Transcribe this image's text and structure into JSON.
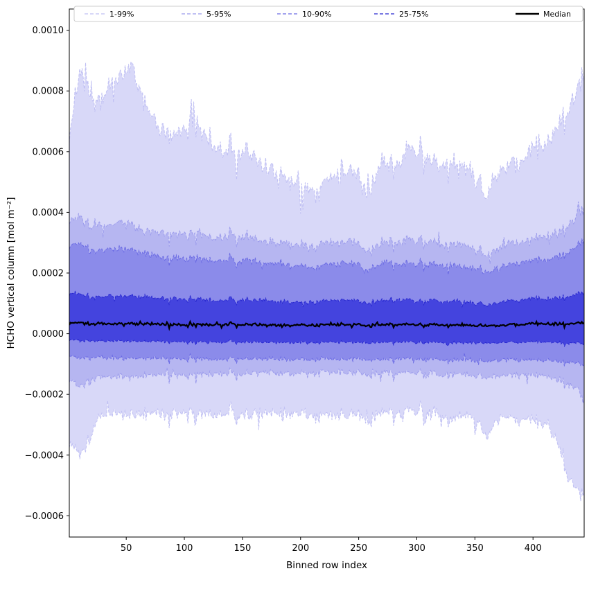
{
  "figure": {
    "background": "#ffffff"
  },
  "chart_data": {
    "type": "area",
    "title": "",
    "xlabel": "Binned row index",
    "ylabel": "HCHO vertical column [mol m⁻²]",
    "xlim": [
      1,
      444
    ],
    "ylim": [
      -0.00067,
      0.00107
    ],
    "n_bins": 444,
    "grid": false,
    "noise_seed": 1337,
    "xticks": {
      "values": [
        50,
        100,
        150,
        200,
        250,
        300,
        350,
        400
      ],
      "labels": [
        "50",
        "100",
        "150",
        "200",
        "250",
        "300",
        "350",
        "400"
      ]
    },
    "yticks": {
      "values": [
        0.001,
        0.0008,
        0.0006,
        0.0004,
        0.0002,
        0.0,
        -0.0002,
        -0.0004,
        -0.0006
      ],
      "labels": [
        "0.0010",
        "0.0008",
        "0.0006",
        "0.0004",
        "0.0002",
        "0.0000",
        "−0.0002",
        "−0.0004",
        "−0.0006"
      ]
    },
    "legend": {
      "position": "top-expand",
      "entries": [
        {
          "label": "1-99%",
          "color": "#bfbff3",
          "dash": "5 3",
          "width": 1.2
        },
        {
          "label": "5-95%",
          "color": "#9b9bec",
          "dash": "5 3",
          "width": 1.2
        },
        {
          "label": "10-90%",
          "color": "#6a6ae3",
          "dash": "5 3",
          "width": 1.2
        },
        {
          "label": "25-75%",
          "color": "#2828cf",
          "dash": "5 3",
          "width": 1.2
        },
        {
          "label": "Median",
          "color": "#000000",
          "dash": "",
          "width": 2.5
        }
      ]
    },
    "bands": [
      {
        "label": "1-99%",
        "upper": "p99",
        "lower": "p01",
        "fill": "#d8d8f8",
        "stroke": "#bfbff3"
      },
      {
        "label": "5-95%",
        "upper": "p95",
        "lower": "p05",
        "fill": "#b6b6f1",
        "stroke": "#9b9bec"
      },
      {
        "label": "10-90%",
        "upper": "p90",
        "lower": "p10",
        "fill": "#8b8bea",
        "stroke": "#6a6ae3"
      },
      {
        "label": "25-75%",
        "upper": "p75",
        "lower": "p25",
        "fill": "#4444de",
        "stroke": "#2828cf"
      }
    ],
    "median_style": {
      "label": "Median",
      "color": "#000000",
      "width": 2.2
    },
    "control_x": [
      1,
      10,
      18,
      26,
      35,
      45,
      55,
      68,
      80,
      95,
      110,
      125,
      140,
      155,
      170,
      185,
      200,
      215,
      230,
      245,
      258,
      270,
      285,
      300,
      315,
      330,
      345,
      360,
      372,
      385,
      400,
      412,
      422,
      430,
      438,
      444
    ],
    "series": {
      "p99": {
        "noise": 4.5e-05,
        "spike": 0.05,
        "y": [
          0.00065,
          0.00088,
          0.0008,
          0.00076,
          0.00082,
          0.00086,
          0.00088,
          0.00074,
          0.00066,
          0.00066,
          0.0007,
          0.00062,
          0.00059,
          0.0006,
          0.00054,
          0.00052,
          0.00048,
          0.00047,
          0.00052,
          0.00054,
          0.00046,
          0.00056,
          0.00056,
          0.00062,
          0.00056,
          0.00058,
          0.00054,
          0.00046,
          0.00054,
          0.00056,
          0.0006,
          0.00062,
          0.0007,
          0.00074,
          0.0008,
          0.00088
        ]
      },
      "p95": {
        "noise": 2.2e-05,
        "spike": 0.03,
        "y": [
          0.00037,
          0.00039,
          0.00036,
          0.00035,
          0.00036,
          0.00037,
          0.00036,
          0.00034,
          0.00033,
          0.00033,
          0.00033,
          0.00032,
          0.00032,
          0.00032,
          0.0003,
          0.0003,
          0.00029,
          0.00029,
          0.0003,
          0.0003,
          0.00027,
          0.0003,
          0.0003,
          0.00031,
          0.0003,
          0.0003,
          0.00029,
          0.00026,
          0.00029,
          0.0003,
          0.00031,
          0.00032,
          0.00034,
          0.00036,
          0.00039,
          0.00042
        ]
      },
      "p90": {
        "noise": 1.6e-05,
        "spike": 0.02,
        "y": [
          0.00029,
          0.0003,
          0.00028,
          0.00027,
          0.00028,
          0.00028,
          0.00028,
          0.00026,
          0.00025,
          0.00025,
          0.00025,
          0.00024,
          0.00024,
          0.00024,
          0.00023,
          0.00023,
          0.00022,
          0.00022,
          0.00023,
          0.00023,
          0.00021,
          0.00023,
          0.00023,
          0.00023,
          0.00023,
          0.00023,
          0.00022,
          0.0002,
          0.00022,
          0.00023,
          0.00024,
          0.00024,
          0.00026,
          0.00027,
          0.00029,
          0.00031
        ]
      },
      "p75": {
        "noise": 1e-05,
        "spike": 0.02,
        "y": [
          0.00013,
          0.000135,
          0.000125,
          0.00012,
          0.000125,
          0.000125,
          0.000125,
          0.00012,
          0.000115,
          0.000115,
          0.000115,
          0.00011,
          0.00011,
          0.00011,
          0.00011,
          0.000105,
          0.000105,
          0.000105,
          0.00011,
          0.00011,
          0.0001,
          0.00011,
          0.00011,
          0.00011,
          0.00011,
          0.00011,
          0.000105,
          9.5e-05,
          0.000105,
          0.00011,
          0.000115,
          0.000115,
          0.00012,
          0.000125,
          0.00013,
          0.00014
        ]
      },
      "median": {
        "noise": 6e-06,
        "spike": 0.03,
        "y": [
          3.5e-05,
          3.8e-05,
          3.4e-05,
          3.2e-05,
          3.3e-05,
          3.3e-05,
          3.3e-05,
          3.2e-05,
          3e-05,
          3e-05,
          3e-05,
          3e-05,
          3e-05,
          3e-05,
          2.8e-05,
          2.8e-05,
          2.8e-05,
          2.8e-05,
          3e-05,
          3e-05,
          2.6e-05,
          3e-05,
          3e-05,
          3e-05,
          3e-05,
          3e-05,
          2.8e-05,
          2.6e-05,
          2.8e-05,
          3e-05,
          3.2e-05,
          3.2e-05,
          3.3e-05,
          3.4e-05,
          3.5e-05,
          3.8e-05
        ]
      },
      "p25": {
        "noise": 6e-06,
        "spike": 0.02,
        "y": [
          -2e-05,
          -2.2e-05,
          -2.2e-05,
          -2.4e-05,
          -2.4e-05,
          -2.4e-05,
          -2.5e-05,
          -2.5e-05,
          -2.6e-05,
          -2.6e-05,
          -2.7e-05,
          -2.7e-05,
          -2.8e-05,
          -2.8e-05,
          -2.8e-05,
          -2.9e-05,
          -2.9e-05,
          -2.9e-05,
          -2.8e-05,
          -2.8e-05,
          -3e-05,
          -2.8e-05,
          -2.8e-05,
          -2.7e-05,
          -2.8e-05,
          -2.8e-05,
          -2.9e-05,
          -3.1e-05,
          -2.9e-05,
          -2.8e-05,
          -2.8e-05,
          -2.8e-05,
          -2.9e-05,
          -3e-05,
          -3.1e-05,
          -3.2e-05
        ]
      },
      "p10": {
        "noise": 9e-06,
        "spike": 0.02,
        "y": [
          -7e-05,
          -8e-05,
          -7.8e-05,
          -7.8e-05,
          -8e-05,
          -8e-05,
          -8e-05,
          -8e-05,
          -8.2e-05,
          -8.2e-05,
          -8.2e-05,
          -8.4e-05,
          -8.4e-05,
          -8.4e-05,
          -8.4e-05,
          -8.5e-05,
          -8.5e-05,
          -8.5e-05,
          -8.4e-05,
          -8.4e-05,
          -8.8e-05,
          -8.4e-05,
          -8.4e-05,
          -8.2e-05,
          -8.4e-05,
          -8.4e-05,
          -8.6e-05,
          -9e-05,
          -8.6e-05,
          -8.6e-05,
          -8.8e-05,
          -8.8e-05,
          -9e-05,
          -9.2e-05,
          -9.6e-05,
          -0.0001
        ]
      },
      "p05": {
        "noise": 1.6e-05,
        "spike": 0.03,
        "y": [
          -0.00015,
          -0.00017,
          -0.000155,
          -0.000145,
          -0.00014,
          -0.00014,
          -0.000142,
          -0.000138,
          -0.000136,
          -0.000135,
          -0.000135,
          -0.000133,
          -0.000132,
          -0.000132,
          -0.00013,
          -0.00013,
          -0.000128,
          -0.000128,
          -0.00013,
          -0.00013,
          -0.000136,
          -0.00013,
          -0.00013,
          -0.000128,
          -0.00013,
          -0.00013,
          -0.000132,
          -0.000145,
          -0.000134,
          -0.000136,
          -0.00014,
          -0.000142,
          -0.00015,
          -0.00016,
          -0.00018,
          -0.00022
        ]
      },
      "p01": {
        "noise": 2.8e-05,
        "spike": 0.05,
        "y": [
          -0.00036,
          -0.00039,
          -0.00034,
          -0.00028,
          -0.000262,
          -0.00026,
          -0.00027,
          -0.00026,
          -0.00027,
          -0.00026,
          -0.00026,
          -0.00027,
          -0.00026,
          -0.00027,
          -0.00026,
          -0.00026,
          -0.00026,
          -0.00027,
          -0.00027,
          -0.00027,
          -0.00029,
          -0.00026,
          -0.00027,
          -0.00025,
          -0.00026,
          -0.00027,
          -0.00026,
          -0.00033,
          -0.00027,
          -0.00028,
          -0.00029,
          -0.0003,
          -0.00036,
          -0.00046,
          -0.00052,
          -0.00052
        ]
      }
    }
  }
}
